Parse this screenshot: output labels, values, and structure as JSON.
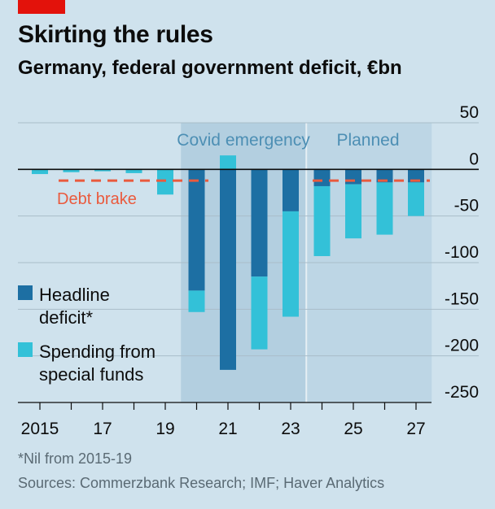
{
  "header": {
    "title": "Skirting the rules",
    "subtitle": "Germany, federal government deficit, €bn"
  },
  "footer": {
    "footnote": "*Nil from 2015-19",
    "source": "Sources: Commerzbank Research; IMF; Haver Analytics"
  },
  "colors": {
    "headline": "#1d6fa3",
    "special": "#33c1d8",
    "debt_brake": "#ea5a3d",
    "covid_band": "#b3cfe0",
    "planned_band": "#bdd6e5",
    "background": "#cfe2ed",
    "grid": "#a9bdc9",
    "annotation": "#4d8fb4"
  },
  "chart_data": {
    "type": "bar",
    "stacked": true,
    "x": [
      2015,
      2016,
      2017,
      2018,
      2019,
      2020,
      2021,
      2022,
      2023,
      2024,
      2025,
      2026,
      2027
    ],
    "tick_labels": [
      {
        "x": 2015,
        "label": "2015"
      },
      {
        "x": 2017,
        "label": "17"
      },
      {
        "x": 2019,
        "label": "19"
      },
      {
        "x": 2021,
        "label": "21"
      },
      {
        "x": 2023,
        "label": "23"
      },
      {
        "x": 2025,
        "label": "25"
      },
      {
        "x": 2027,
        "label": "27"
      }
    ],
    "ylim": [
      -250,
      50
    ],
    "yticks": [
      50,
      0,
      -50,
      -100,
      -150,
      -200,
      -250
    ],
    "ytick_labels": [
      "50",
      "0",
      "-50",
      "-100",
      "-150",
      "-200",
      "-250"
    ],
    "grid": true,
    "series": [
      {
        "name": "Headline deficit*",
        "key": "headline",
        "values": [
          0,
          0,
          0,
          0,
          0,
          -130,
          -215,
          -115,
          -45,
          -18,
          -16,
          -14,
          -14
        ]
      },
      {
        "name": "Spending from special funds",
        "key": "special",
        "values": [
          -5,
          -3,
          -2,
          -4,
          -27,
          -23,
          15,
          -78,
          -113,
          -75,
          -58,
          -56,
          -36
        ]
      }
    ],
    "debt_brake": {
      "label": "Debt brake",
      "value": -12
    },
    "shaded_periods": [
      {
        "label": "Covid emergency",
        "from": 2019.5,
        "to": 2023.5,
        "style": "covid"
      },
      {
        "label": "Planned",
        "from": 2023.5,
        "to": 2027.5,
        "style": "planned"
      }
    ],
    "legend": {
      "placement": "bottom-left"
    }
  }
}
